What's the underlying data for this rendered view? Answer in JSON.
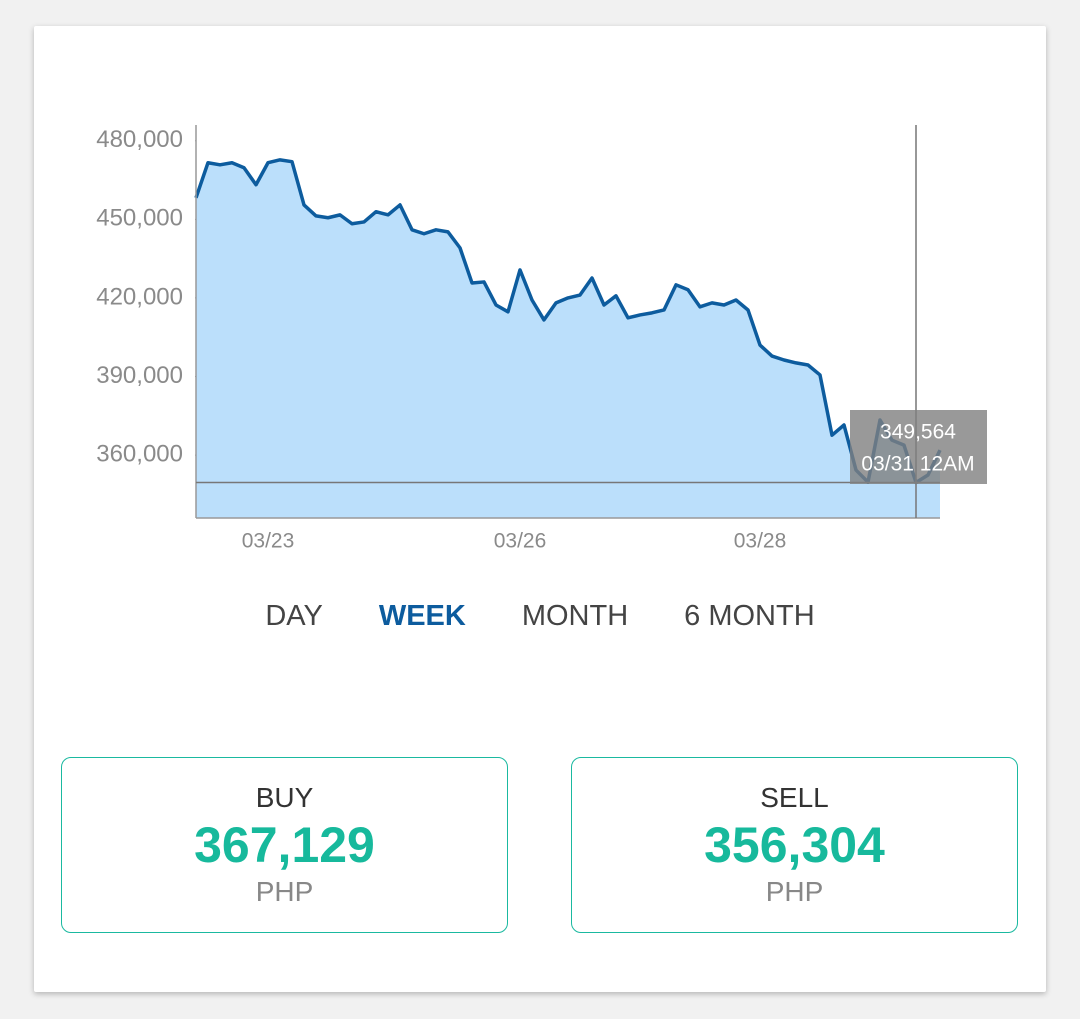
{
  "chart_data": {
    "type": "area",
    "categories": [
      null,
      null,
      null,
      null,
      null,
      null,
      "03/23",
      null,
      null,
      null,
      null,
      null,
      null,
      null,
      null,
      null,
      null,
      null,
      null,
      null,
      null,
      null,
      null,
      null,
      null,
      null,
      null,
      "03/26",
      null,
      null,
      null,
      null,
      null,
      null,
      null,
      null,
      null,
      null,
      null,
      null,
      null,
      null,
      null,
      null,
      null,
      null,
      null,
      "03/28",
      null,
      null,
      null,
      null,
      null,
      null,
      null,
      null,
      null,
      null,
      null,
      null,
      null,
      null,
      null
    ],
    "values": [
      458200,
      471600,
      470800,
      471600,
      469700,
      463200,
      471600,
      472700,
      472000,
      455500,
      451300,
      450600,
      451700,
      448300,
      449000,
      452900,
      451700,
      455500,
      446000,
      444500,
      446000,
      445200,
      439100,
      425700,
      426100,
      417300,
      414700,
      430700,
      419200,
      411600,
      418100,
      420000,
      421100,
      427600,
      417300,
      420800,
      412400,
      413500,
      414300,
      415400,
      425000,
      423100,
      416600,
      418100,
      417300,
      419200,
      415400,
      402000,
      397800,
      396300,
      395200,
      394400,
      390600,
      367600,
      371500,
      354300,
      349700,
      373400,
      365700,
      363800,
      349564,
      352400,
      361900
    ],
    "color": "#0d5c9e",
    "fill": "#bbdffb",
    "ylim": [
      336000,
      486000
    ],
    "yticks": [
      {
        "value": 360000,
        "label": "360,000"
      },
      {
        "value": 390000,
        "label": "390,000"
      },
      {
        "value": 420000,
        "label": "420,000"
      },
      {
        "value": 450000,
        "label": "450,000"
      },
      {
        "value": 480000,
        "label": "480,000"
      }
    ],
    "tooltip": {
      "value": 349564,
      "label": "349,564",
      "x_label": "03/31 12AM"
    }
  },
  "tabs": [
    {
      "label": "DAY"
    },
    {
      "label": "WEEK",
      "active": true
    },
    {
      "label": "MONTH"
    },
    {
      "label": "6 MONTH"
    }
  ],
  "cards": [
    {
      "title": "BUY",
      "amount": "367,129",
      "currency": "PHP"
    },
    {
      "title": "SELL",
      "amount": "356,304",
      "currency": "PHP"
    }
  ]
}
